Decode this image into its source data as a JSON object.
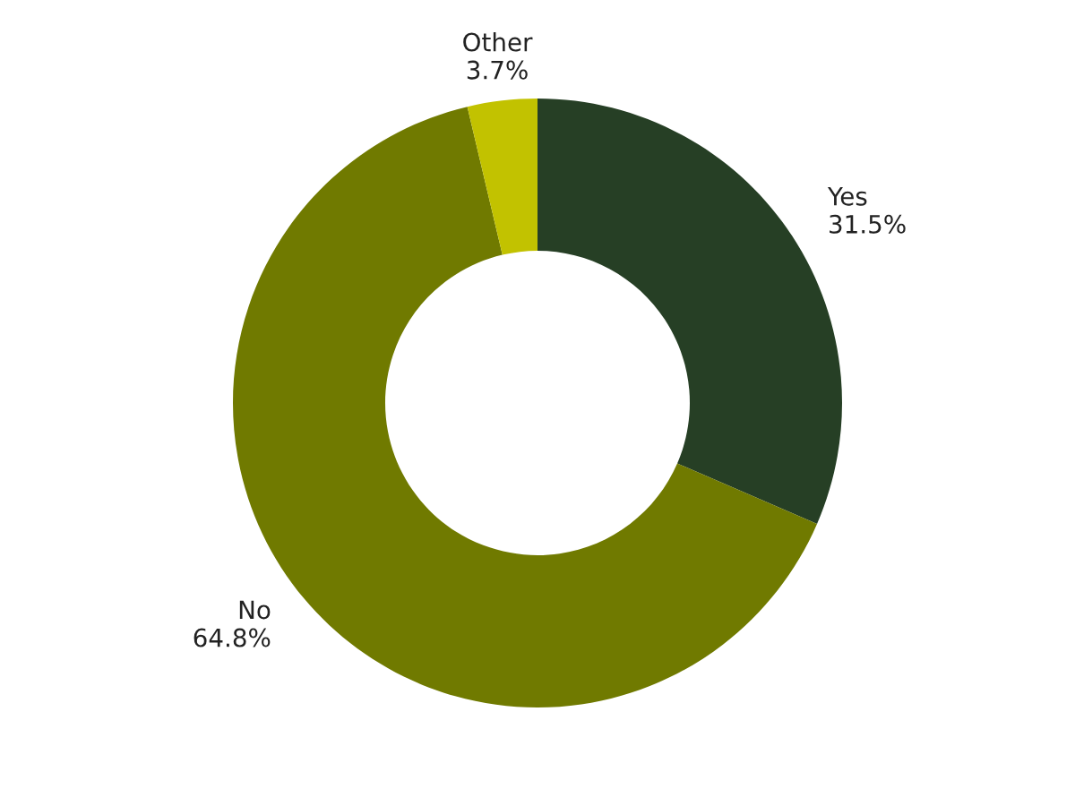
{
  "chart_data": {
    "type": "donut",
    "categories": [
      "Yes",
      "No",
      "Other"
    ],
    "values": [
      31.5,
      64.8,
      3.7
    ],
    "value_labels": [
      "31.5%",
      "64.8%",
      "3.7%"
    ],
    "colors": [
      "#263f25",
      "#707a00",
      "#c2c200"
    ]
  }
}
